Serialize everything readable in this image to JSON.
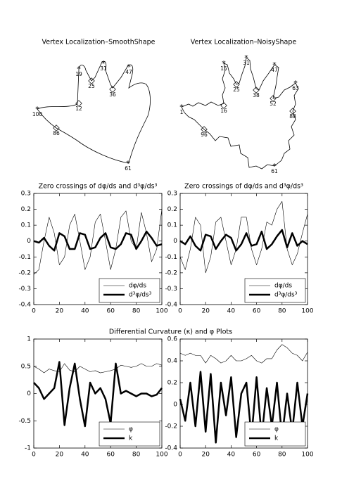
{
  "chart_data": [
    {
      "type": "diagram",
      "title": "Vertex Localization–SmoothShape",
      "vertex_labels": [
        19,
        31,
        47,
        25,
        36,
        12,
        100,
        86,
        61
      ]
    },
    {
      "type": "diagram",
      "title": "Vertex Localization–NoisyShape",
      "vertex_labels": [
        1,
        15,
        31,
        47,
        63,
        25,
        38,
        52,
        16,
        96,
        88,
        61
      ]
    },
    {
      "type": "line",
      "title": "Zero crossings of dφ/ds and d³φ/ds³",
      "x": [
        0,
        4,
        8,
        12,
        16,
        20,
        24,
        28,
        32,
        36,
        40,
        44,
        48,
        52,
        56,
        60,
        64,
        68,
        72,
        76,
        80,
        84,
        88,
        92,
        96,
        100
      ],
      "xlim": [
        0,
        100
      ],
      "xticks": [
        0,
        20,
        40,
        60,
        80,
        100
      ],
      "ylim": [
        -0.4,
        0.3
      ],
      "yticks": [
        -0.4,
        -0.3,
        -0.2,
        -0.1,
        0,
        0.1,
        0.2,
        0.3
      ],
      "legend": "lower right",
      "series": [
        {
          "name": "dφ/ds",
          "color": "#000000",
          "line_width": 0.6,
          "values": [
            -0.21,
            -0.18,
            0.0,
            0.15,
            0.05,
            -0.15,
            -0.1,
            0.1,
            0.17,
            0.0,
            -0.18,
            -0.1,
            0.12,
            0.17,
            0.0,
            -0.18,
            -0.05,
            0.15,
            0.19,
            0.0,
            -0.05,
            0.18,
            0.05,
            -0.13,
            -0.05,
            0.2
          ]
        },
        {
          "name": "d³φ/ds³",
          "color": "#000000",
          "line_width": 2.5,
          "values": [
            0.0,
            -0.01,
            0.02,
            -0.03,
            -0.06,
            0.05,
            0.03,
            -0.05,
            -0.05,
            0.05,
            0.04,
            -0.05,
            -0.04,
            0.02,
            0.05,
            -0.04,
            -0.05,
            -0.02,
            0.05,
            0.04,
            -0.05,
            0.0,
            0.06,
            0.02,
            -0.03,
            -0.02
          ]
        }
      ]
    },
    {
      "type": "line",
      "title": "Zero crossings of dφ/ds and d³φ/ds³",
      "x": [
        0,
        4,
        8,
        12,
        16,
        20,
        24,
        28,
        32,
        36,
        40,
        44,
        48,
        52,
        56,
        60,
        64,
        68,
        72,
        76,
        80,
        84,
        88,
        92,
        96,
        100
      ],
      "xlim": [
        0,
        100
      ],
      "xticks": [
        0,
        20,
        40,
        60,
        80,
        100
      ],
      "ylim": [
        -0.4,
        0.3
      ],
      "yticks": [
        -0.4,
        -0.3,
        -0.2,
        -0.1,
        0,
        0.1,
        0.2,
        0.3
      ],
      "legend": "lower right",
      "series": [
        {
          "name": "dφ/ds",
          "color": "#000000",
          "line_width": 0.6,
          "values": [
            -0.1,
            -0.18,
            -0.05,
            0.15,
            0.1,
            -0.2,
            -0.1,
            0.12,
            0.15,
            0.0,
            -0.15,
            -0.05,
            0.15,
            0.15,
            -0.05,
            -0.15,
            -0.05,
            0.12,
            0.1,
            0.2,
            0.25,
            -0.05,
            -0.15,
            -0.08,
            0.05,
            0.17
          ]
        },
        {
          "name": "d³φ/ds³",
          "color": "#000000",
          "line_width": 2.5,
          "values": [
            0.0,
            -0.02,
            0.03,
            -0.03,
            -0.06,
            0.04,
            0.03,
            -0.05,
            0.0,
            0.04,
            0.02,
            -0.06,
            -0.02,
            0.05,
            -0.03,
            -0.02,
            0.06,
            -0.05,
            -0.02,
            0.03,
            0.07,
            -0.04,
            0.05,
            -0.03,
            0.0,
            -0.02
          ]
        }
      ]
    },
    {
      "type": "line",
      "title": "Differential Curvature (κ) and φ Plots",
      "x": [
        0,
        4,
        8,
        12,
        16,
        20,
        24,
        28,
        32,
        36,
        40,
        44,
        48,
        52,
        56,
        60,
        64,
        68,
        72,
        76,
        80,
        84,
        88,
        92,
        96,
        100
      ],
      "xlim": [
        0,
        100
      ],
      "xticks": [
        0,
        20,
        40,
        60,
        80,
        100
      ],
      "ylim": [
        -1,
        1
      ],
      "yticks": [
        -1,
        -0.5,
        0,
        0.5,
        1
      ],
      "legend": "lower right",
      "series": [
        {
          "name": "φ",
          "color": "#000000",
          "line_width": 0.6,
          "values": [
            0.5,
            0.45,
            0.38,
            0.45,
            0.42,
            0.4,
            0.55,
            0.43,
            0.4,
            0.5,
            0.45,
            0.4,
            0.42,
            0.38,
            0.4,
            0.42,
            0.45,
            0.52,
            0.5,
            0.48,
            0.5,
            0.55,
            0.5,
            0.5,
            0.55,
            0.52
          ]
        },
        {
          "name": "k",
          "color": "#000000",
          "line_width": 2.5,
          "values": [
            0.2,
            0.1,
            -0.1,
            0.0,
            0.1,
            0.58,
            -0.58,
            0.1,
            0.55,
            -0.1,
            -0.6,
            0.2,
            0.0,
            0.1,
            -0.1,
            -0.55,
            0.55,
            0.0,
            0.05,
            0.0,
            -0.05,
            0.0,
            0.0,
            -0.05,
            -0.02,
            0.1
          ]
        }
      ]
    },
    {
      "type": "line",
      "x": [
        0,
        4,
        8,
        12,
        16,
        20,
        24,
        28,
        32,
        36,
        40,
        44,
        48,
        52,
        56,
        60,
        64,
        68,
        72,
        76,
        80,
        84,
        88,
        92,
        96,
        100
      ],
      "xlim": [
        0,
        100
      ],
      "xticks": [
        0,
        20,
        40,
        60,
        80,
        100
      ],
      "ylim": [
        -0.4,
        0.6
      ],
      "yticks": [
        -0.4,
        -0.2,
        0,
        0.2,
        0.4,
        0.6
      ],
      "legend": "lower right",
      "series": [
        {
          "name": "φ",
          "color": "#000000",
          "line_width": 0.6,
          "values": [
            0.47,
            0.45,
            0.47,
            0.45,
            0.45,
            0.38,
            0.45,
            0.42,
            0.38,
            0.4,
            0.45,
            0.4,
            0.4,
            0.42,
            0.45,
            0.4,
            0.38,
            0.42,
            0.42,
            0.5,
            0.55,
            0.52,
            0.47,
            0.45,
            0.4,
            0.48
          ]
        },
        {
          "name": "k",
          "color": "#000000",
          "line_width": 2.5,
          "values": [
            0.05,
            -0.15,
            0.2,
            -0.2,
            0.3,
            -0.25,
            0.28,
            -0.35,
            0.2,
            -0.1,
            0.25,
            -0.3,
            0.1,
            0.2,
            -0.3,
            0.25,
            -0.3,
            0.15,
            -0.2,
            0.2,
            -0.3,
            0.1,
            -0.25,
            0.2,
            -0.2,
            0.1
          ]
        }
      ]
    }
  ]
}
